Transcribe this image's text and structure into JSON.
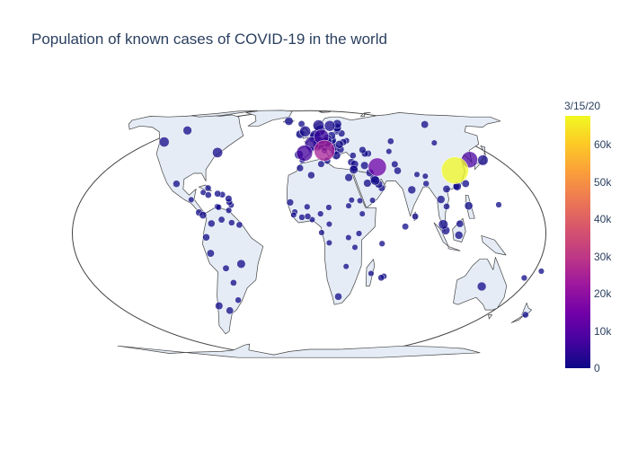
{
  "title": "Population of known cases of COVID-19 in the world",
  "colorbar": {
    "title": "3/15/20",
    "ticks": [
      {
        "value": 0,
        "label": "0"
      },
      {
        "value": 10000,
        "label": "10k"
      },
      {
        "value": 20000,
        "label": "20k"
      },
      {
        "value": 30000,
        "label": "30k"
      },
      {
        "value": 40000,
        "label": "40k"
      },
      {
        "value": 50000,
        "label": "50k"
      },
      {
        "value": 60000,
        "label": "60k"
      }
    ],
    "min": 0,
    "max": 67800,
    "colorscale": [
      "#0d0887",
      "#46039f",
      "#7201a8",
      "#9c179e",
      "#bd3786",
      "#d8576b",
      "#ed7953",
      "#fb9f3a",
      "#fdca26",
      "#f0f921"
    ]
  },
  "colors": {
    "land": "#e5ecf6",
    "coastline": "#444444",
    "frame": "#444444"
  },
  "chart_data": {
    "type": "scatter-geo",
    "projection": "natural earth",
    "size_and_color_by": "confirmed cases",
    "points": [
      {
        "lat": 30.6,
        "lon": 114.3,
        "cases": 67800
      },
      {
        "lat": 41.9,
        "lon": 12.5,
        "cases": 24747
      },
      {
        "lat": 32.4,
        "lon": 53.7,
        "cases": 13938
      },
      {
        "lat": 40.4,
        "lon": -3.7,
        "cases": 7798
      },
      {
        "lat": 36.5,
        "lon": 127.8,
        "cases": 8162
      },
      {
        "lat": 51.2,
        "lon": 10.4,
        "cases": 5795
      },
      {
        "lat": 46.2,
        "lon": 2.2,
        "cases": 4499
      },
      {
        "lat": 40.7,
        "lon": -74.0,
        "cases": 732
      },
      {
        "lat": 47.5,
        "lon": -120.5,
        "cases": 642
      },
      {
        "lat": 46.8,
        "lon": 8.2,
        "cases": 2200
      },
      {
        "lat": 55.4,
        "lon": -3.4,
        "cases": 1144
      },
      {
        "lat": 52.1,
        "lon": 5.3,
        "cases": 1135
      },
      {
        "lat": 60.5,
        "lon": 8.5,
        "cases": 1256
      },
      {
        "lat": 60.1,
        "lon": 18.6,
        "cases": 1022
      },
      {
        "lat": 56.3,
        "lon": 9.5,
        "cases": 875
      },
      {
        "lat": 50.5,
        "lon": 4.5,
        "cases": 886
      },
      {
        "lat": 47.5,
        "lon": 14.6,
        "cases": 860
      },
      {
        "lat": 36.2,
        "lon": 138.3,
        "cases": 839
      },
      {
        "lat": 1.4,
        "lon": 103.8,
        "cases": 226
      },
      {
        "lat": 4.2,
        "lon": 102.0,
        "cases": 428
      },
      {
        "lat": 31.0,
        "lon": 35.0,
        "cases": 200
      },
      {
        "lat": 25.3,
        "lon": 51.2,
        "cases": 401
      },
      {
        "lat": 26.1,
        "lon": 50.6,
        "cases": 214
      },
      {
        "lat": -14.2,
        "lon": -51.9,
        "cases": 200
      },
      {
        "lat": 56.1,
        "lon": -106.3,
        "cases": 250
      },
      {
        "lat": -25.3,
        "lon": 133.8,
        "cases": 297
      },
      {
        "lat": 64.9,
        "lon": -19.0,
        "cases": 171
      },
      {
        "lat": 39.1,
        "lon": 21.8,
        "cases": 228
      },
      {
        "lat": 53.1,
        "lon": -7.7,
        "cases": 169
      },
      {
        "lat": 61.5,
        "lon": 105.3,
        "cases": 63
      },
      {
        "lat": 15.9,
        "lon": 100.9,
        "cases": 114
      },
      {
        "lat": 12.9,
        "lon": 121.8,
        "cases": 140
      },
      {
        "lat": 20.6,
        "lon": 79.0,
        "cases": 113
      },
      {
        "lat": -0.8,
        "lon": 113.9,
        "cases": 117
      },
      {
        "lat": 26.8,
        "lon": 30.8,
        "cases": 110
      },
      {
        "lat": 23.9,
        "lon": 45.1,
        "cases": 103
      },
      {
        "lat": 29.3,
        "lon": 47.5,
        "cases": 112
      },
      {
        "lat": -9.2,
        "lon": -75.0,
        "cases": 71
      },
      {
        "lat": -35.7,
        "lon": -71.5,
        "cases": 74
      },
      {
        "lat": -38.4,
        "lon": -63.6,
        "cases": 45
      },
      {
        "lat": 23.6,
        "lon": -102.5,
        "cases": 41
      },
      {
        "lat": 4.6,
        "lon": -74.3,
        "cases": 34
      },
      {
        "lat": -1.8,
        "lon": -78.2,
        "cases": 37
      },
      {
        "lat": -30.6,
        "lon": 22.9,
        "cases": 51
      },
      {
        "lat": -40.9,
        "lon": 174.9,
        "cases": 8
      },
      {
        "lat": 28.0,
        "lon": 1.7,
        "cases": 37
      },
      {
        "lat": 31.8,
        "lon": -7.1,
        "cases": 28
      },
      {
        "lat": 9.1,
        "lon": 8.7,
        "cases": 2
      },
      {
        "lat": 7.9,
        "lon": -1.0,
        "cases": 6
      },
      {
        "lat": 14.5,
        "lon": -14.5,
        "cases": 24
      },
      {
        "lat": 9.1,
        "lon": 40.5,
        "cases": 1
      },
      {
        "lat": -0.02,
        "lon": 37.9,
        "cases": 3
      },
      {
        "lat": 30.4,
        "lon": 69.3,
        "cases": 53
      },
      {
        "lat": 33.9,
        "lon": 67.7,
        "cases": 16
      },
      {
        "lat": 23.7,
        "lon": 90.4,
        "cases": 5
      },
      {
        "lat": 7.9,
        "lon": 80.8,
        "cases": 11
      },
      {
        "lat": 21.0,
        "lon": 105.8,
        "cases": 56
      },
      {
        "lat": 23.7,
        "lon": 121.0,
        "cases": 59
      },
      {
        "lat": 22.3,
        "lon": 114.2,
        "cases": 145
      },
      {
        "lat": 38.9,
        "lon": 35.2,
        "cases": 6
      },
      {
        "lat": 33.2,
        "lon": 43.7,
        "cases": 110
      },
      {
        "lat": 33.9,
        "lon": 35.9,
        "cases": 93
      },
      {
        "lat": 48.0,
        "lon": 68.0,
        "cases": 9
      },
      {
        "lat": 46.9,
        "lon": 103.8,
        "cases": 1
      },
      {
        "lat": 18.7,
        "lon": -70.2,
        "cases": 11
      },
      {
        "lat": 18.1,
        "lon": -77.3,
        "cases": 8
      },
      {
        "lat": 21.5,
        "lon": -77.8,
        "cases": 4
      },
      {
        "lat": 8.5,
        "lon": -80.8,
        "cases": 43
      },
      {
        "lat": 9.7,
        "lon": -83.8,
        "cases": 26
      },
      {
        "lat": 15.8,
        "lon": -90.2,
        "cases": 1
      },
      {
        "lat": 6.4,
        "lon": -66.6,
        "cases": 10
      },
      {
        "lat": -16.3,
        "lon": -63.6,
        "cases": 10
      },
      {
        "lat": -23.4,
        "lon": -58.4,
        "cases": 6
      },
      {
        "lat": -32.5,
        "lon": -55.8,
        "cases": 4
      },
      {
        "lat": 18.2,
        "lon": -66.6,
        "cases": 5
      },
      {
        "lat": 13.2,
        "lon": -59.5,
        "cases": 1
      },
      {
        "lat": 10.7,
        "lon": -61.2,
        "cases": 2
      },
      {
        "lat": 14.6,
        "lon": -61.0,
        "cases": 9
      },
      {
        "lat": 16.3,
        "lon": -61.6,
        "cases": 18
      },
      {
        "lat": 4.0,
        "lon": -53.0,
        "cases": 7
      },
      {
        "lat": 12.5,
        "lon": -70.0,
        "cases": 2
      },
      {
        "lat": 12.2,
        "lon": -69.0,
        "cases": 3
      },
      {
        "lat": 5.0,
        "lon": -58.9,
        "cases": 4
      },
      {
        "lat": 19.3,
        "lon": -81.3,
        "cases": 1
      },
      {
        "lat": -4.7,
        "lon": 55.5,
        "cases": 2
      },
      {
        "lat": -20.9,
        "lon": 55.5,
        "cases": 7
      },
      {
        "lat": -18.8,
        "lon": 47.5,
        "cases": 1
      },
      {
        "lat": -15.4,
        "lon": 28.3,
        "cases": 1
      },
      {
        "lat": -20.2,
        "lon": 57.5,
        "cases": 3
      },
      {
        "lat": 12.1,
        "lon": 15.0,
        "cases": 2
      },
      {
        "lat": 0.4,
        "lon": 9.5,
        "cases": 1
      },
      {
        "lat": 4.3,
        "lon": 15.3,
        "cases": 1
      },
      {
        "lat": -4.3,
        "lon": 15.3,
        "cases": 1
      },
      {
        "lat": 6.4,
        "lon": 2.3,
        "cases": 1
      },
      {
        "lat": 12.4,
        "lon": -1.5,
        "cases": 3
      },
      {
        "lat": 7.5,
        "lon": -5.5,
        "cases": 4
      },
      {
        "lat": 10.0,
        "lon": -10.9,
        "cases": 1
      },
      {
        "lat": 8.6,
        "lon": -11.8,
        "cases": 1
      },
      {
        "lat": 15.6,
        "lon": 32.5,
        "cases": 1
      },
      {
        "lat": 15.3,
        "lon": 38.9,
        "cases": 1
      },
      {
        "lat": -6.4,
        "lon": 34.9,
        "cases": 1
      },
      {
        "lat": -1.9,
        "lon": 29.9,
        "cases": 1
      },
      {
        "lat": 12.9,
        "lon": 30.2,
        "cases": 1
      },
      {
        "lat": 34.0,
        "lon": 9.5,
        "cases": 18
      },
      {
        "lat": 35.1,
        "lon": 33.4,
        "cases": 33
      },
      {
        "lat": 15.5,
        "lon": 48.5,
        "cases": 1
      },
      {
        "lat": 21.5,
        "lon": 55.9,
        "cases": 19
      },
      {
        "lat": 23.4,
        "lon": 53.8,
        "cases": 98
      },
      {
        "lat": 31.9,
        "lon": 35.2,
        "cases": 38
      },
      {
        "lat": 40.1,
        "lon": 47.6,
        "cases": 15
      },
      {
        "lat": 42.3,
        "lon": 43.4,
        "cases": 30
      },
      {
        "lat": 40.1,
        "lon": 45.0,
        "cases": 26
      },
      {
        "lat": 41.4,
        "lon": 64.6,
        "cases": 1
      },
      {
        "lat": 28.4,
        "lon": 84.1,
        "cases": 1
      },
      {
        "lat": 27.5,
        "lon": 90.4,
        "cases": 1
      },
      {
        "lat": 3.2,
        "lon": 73.2,
        "cases": 13
      },
      {
        "lat": 12.6,
        "lon": 104.9,
        "cases": 7
      },
      {
        "lat": 4.5,
        "lon": 114.7,
        "cases": 50
      },
      {
        "lat": 22.2,
        "lon": 113.5,
        "cases": 10
      },
      {
        "lat": 13.4,
        "lon": 144.8,
        "cases": 3
      },
      {
        "lat": -17.7,
        "lon": 178.0,
        "cases": 1
      },
      {
        "lat": -21.0,
        "lon": 165.6,
        "cases": 2
      },
      {
        "lat": 52.0,
        "lon": 19.1,
        "cases": 119
      },
      {
        "lat": 49.8,
        "lon": 15.5,
        "cases": 253
      },
      {
        "lat": 47.2,
        "lon": 19.5,
        "cases": 32
      },
      {
        "lat": 45.9,
        "lon": 25.0,
        "cases": 123
      },
      {
        "lat": 42.7,
        "lon": 25.5,
        "cases": 51
      },
      {
        "lat": 44.0,
        "lon": 21.0,
        "cases": 48
      },
      {
        "lat": 45.1,
        "lon": 15.2,
        "cases": 49
      },
      {
        "lat": 46.2,
        "lon": 14.9,
        "cases": 219
      },
      {
        "lat": 48.7,
        "lon": 19.7,
        "cases": 54
      },
      {
        "lat": 43.9,
        "lon": 17.7,
        "cases": 24
      },
      {
        "lat": 41.2,
        "lon": 20.2,
        "cases": 42
      },
      {
        "lat": 41.6,
        "lon": 21.7,
        "cases": 14
      },
      {
        "lat": 39.4,
        "lon": -8.2,
        "cases": 245
      },
      {
        "lat": 61.9,
        "lon": 25.7,
        "cases": 244
      },
      {
        "lat": 58.6,
        "lon": 25.0,
        "cases": 171
      },
      {
        "lat": 56.9,
        "lon": 24.6,
        "cases": 30
      },
      {
        "lat": 55.2,
        "lon": 23.9,
        "cases": 8
      },
      {
        "lat": 53.7,
        "lon": 27.9,
        "cases": 27
      },
      {
        "lat": 48.4,
        "lon": 31.2,
        "cases": 3
      },
      {
        "lat": 47.4,
        "lon": 28.4,
        "cases": 23
      },
      {
        "lat": 49.8,
        "lon": 6.1,
        "cases": 59
      },
      {
        "lat": 43.7,
        "lon": 7.4,
        "cases": 2
      },
      {
        "lat": 42.5,
        "lon": 1.5,
        "cases": 1
      },
      {
        "lat": 47.1,
        "lon": 9.5,
        "cases": 4
      },
      {
        "lat": 35.9,
        "lon": 14.4,
        "cases": 21
      },
      {
        "lat": 62.0,
        "lon": -6.9,
        "cases": 11
      },
      {
        "lat": 36.1,
        "lon": -5.4,
        "cases": 1
      },
      {
        "lat": 43.9,
        "lon": 12.5,
        "cases": 80
      },
      {
        "lat": 41.9,
        "lon": 12.45,
        "cases": 1
      }
    ]
  }
}
